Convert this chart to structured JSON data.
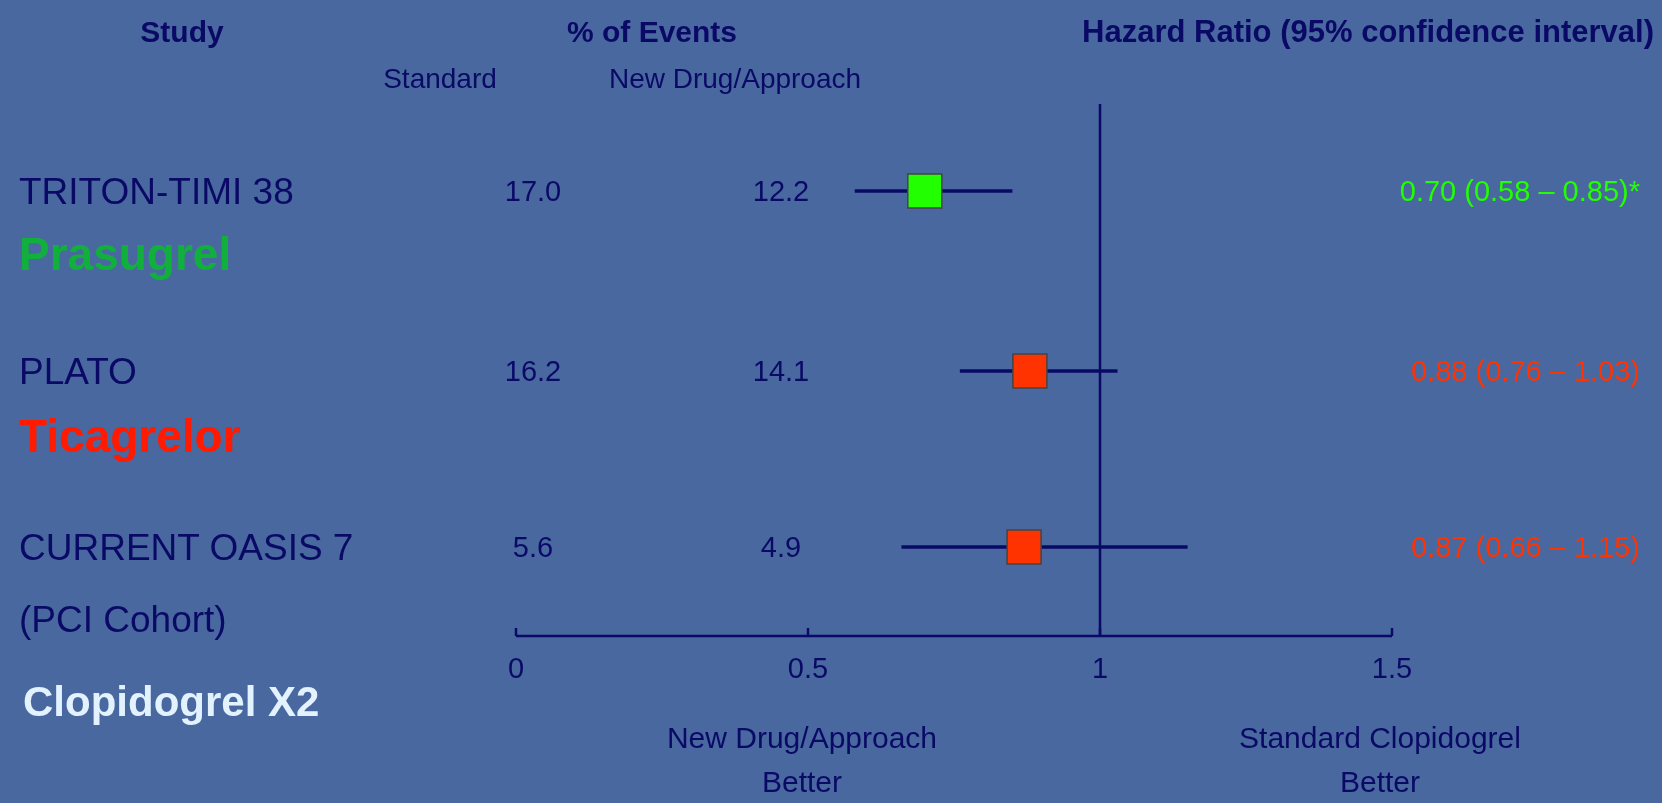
{
  "chart_data": {
    "type": "scatter",
    "orientation": "horizontal",
    "title": "Hazard Ratio (95% confidence interval)",
    "ylabel": "Study",
    "categories": [
      "TRITON-TIMI 38",
      "PLATO",
      "CURRENT OASIS 7 (PCI Cohort)"
    ],
    "values": [
      0.7,
      0.88,
      0.87
    ],
    "errors": [
      [
        0.58,
        0.85
      ],
      [
        0.76,
        1.03
      ],
      [
        0.66,
        1.15
      ]
    ],
    "colors": [
      "#22ff00",
      "#ff3300",
      "#ff3300"
    ],
    "value_labels": [
      "0.70 (0.58 – 0.85)*",
      "0.88 (0.76 – 1.03)",
      "0.87 (0.66 – 1.15)"
    ],
    "xlim": [
      0,
      1.5
    ],
    "xticks": [
      0,
      0.5,
      1,
      1.5
    ],
    "ref_lines": [
      {
        "axis": "x",
        "value": 1
      }
    ],
    "marker": "square",
    "annotations": [
      "% of Events",
      "Standard",
      "New Drug/Approach",
      "17.0",
      "12.2",
      "16.2",
      "14.1",
      "5.6",
      "4.9",
      "Prasugrel",
      "Ticagrelor",
      "Clopidogrel X2",
      "New Drug/Approach Better",
      "Standard Clopidogrel Better"
    ]
  }
}
